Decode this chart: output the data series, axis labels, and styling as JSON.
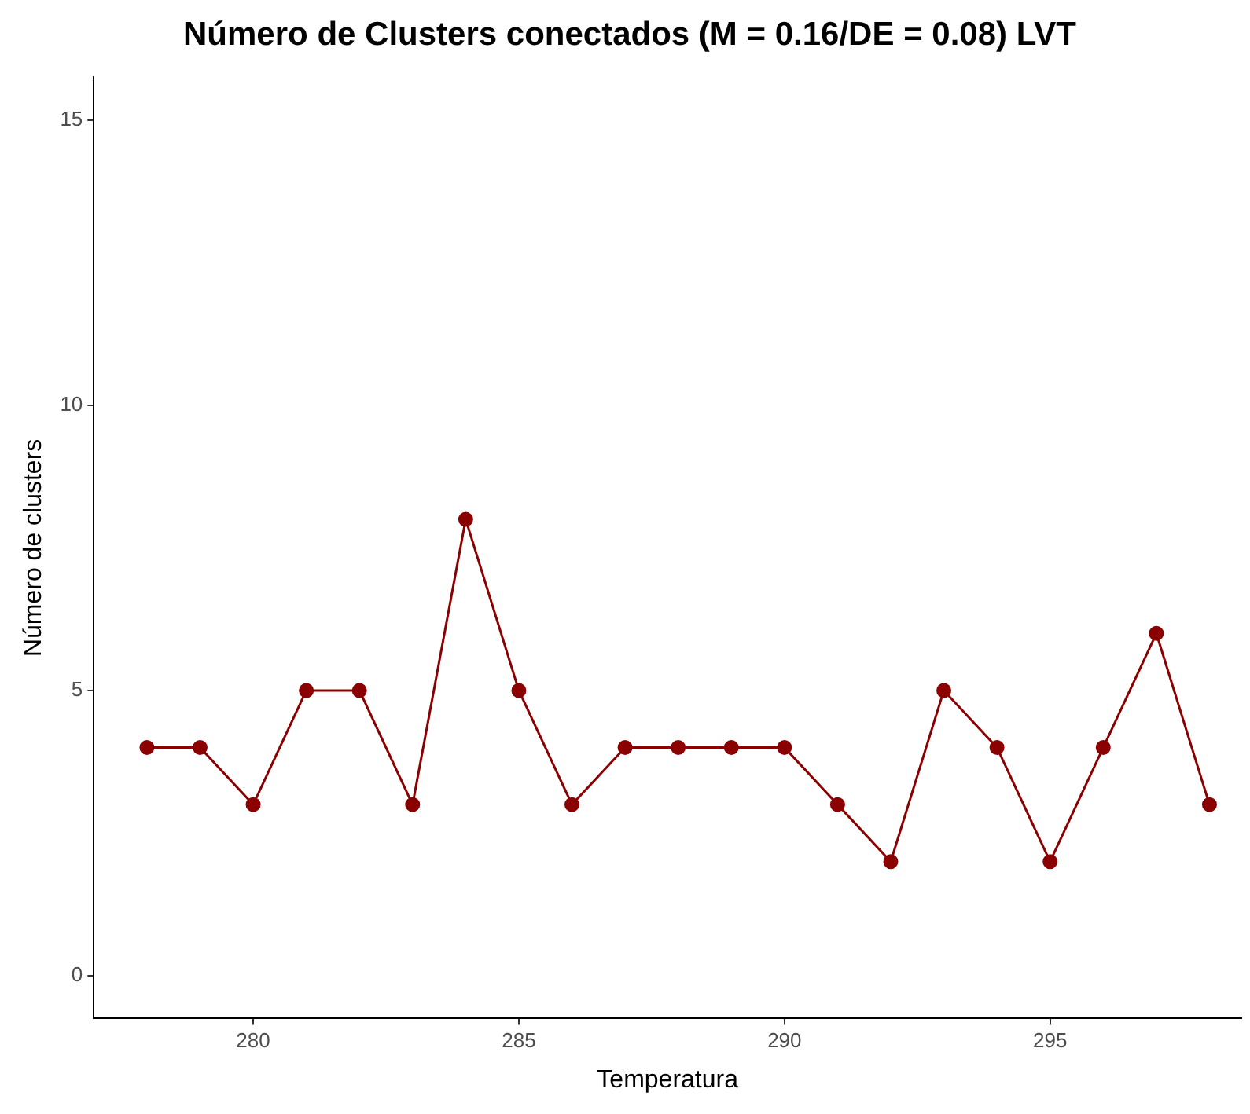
{
  "chart_data": {
    "type": "line",
    "title": "Número de Clusters conectados (M = 0.16/DE = 0.08) LVT",
    "xlabel": "Temperatura",
    "ylabel": "Número de clusters",
    "x": [
      278,
      279,
      280,
      281,
      282,
      283,
      284,
      285,
      286,
      287,
      288,
      289,
      290,
      291,
      292,
      293,
      294,
      295,
      296,
      297,
      298
    ],
    "series": [
      {
        "color": "#8b0000",
        "values": [
          4,
          4,
          3,
          5,
          5,
          3,
          8,
          5,
          3,
          4,
          4,
          4,
          4,
          3,
          2,
          5,
          4,
          2,
          4,
          6,
          3
        ]
      }
    ],
    "xlim": [
      277,
      298.6
    ],
    "xticks": [
      280,
      285,
      290,
      295
    ],
    "ylim": [
      -0.75,
      15.75
    ],
    "yticks": [
      0,
      5,
      10,
      15
    ],
    "grid": false,
    "legend": false,
    "marker": "circle",
    "line_style": "solid"
  }
}
